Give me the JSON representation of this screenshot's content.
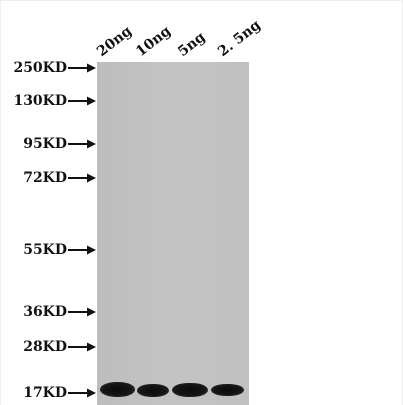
{
  "lanes": [
    "20ng",
    "10ng",
    "5ng",
    "2. 5ng"
  ],
  "markers": [
    "250KD",
    "130KD",
    "95KD",
    "72KD",
    "55KD",
    "36KD",
    "28KD",
    "17KD"
  ],
  "colors": {
    "blot_background": "#c0c0c0",
    "band": "#111111",
    "text": "#111111"
  }
}
